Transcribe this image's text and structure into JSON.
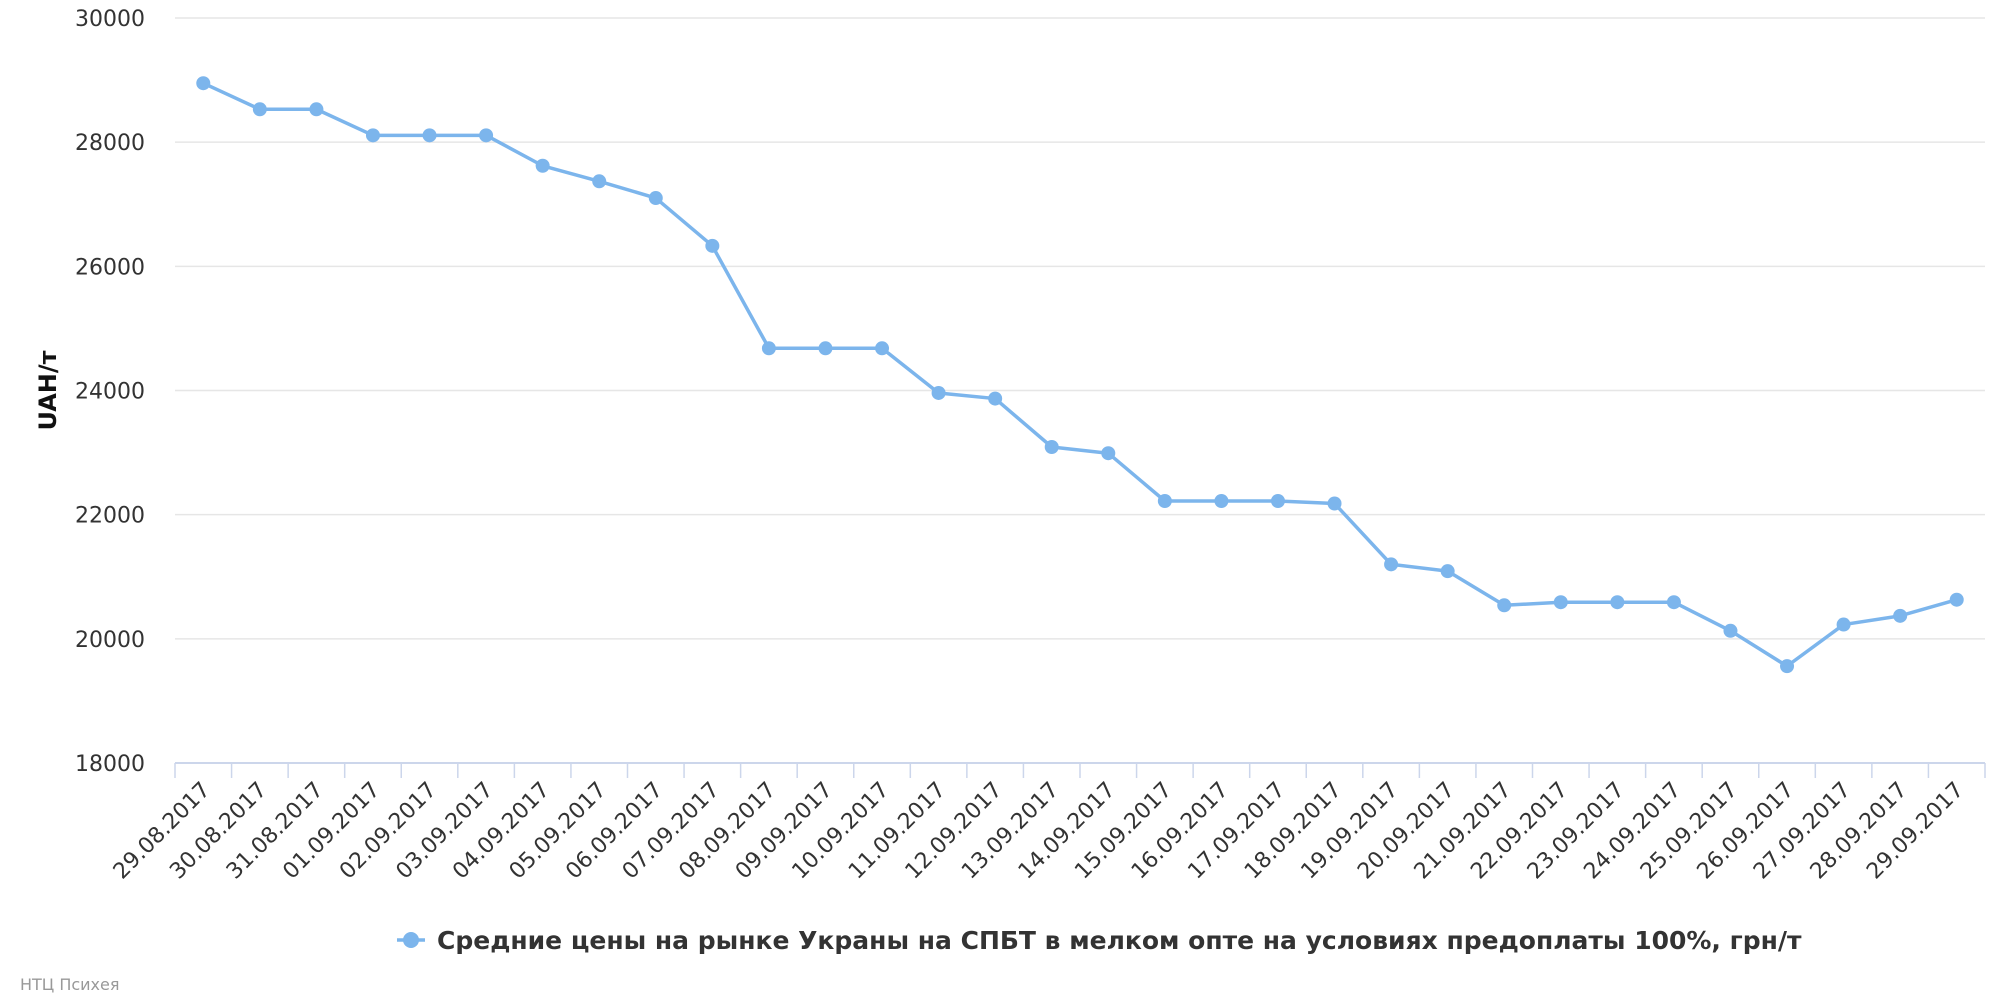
{
  "credit": "НТЦ Психея",
  "colors": {
    "series": "#7cb5ec",
    "grid": "#e6e6e6",
    "axis": "#ccd6eb"
  },
  "chart_data": {
    "type": "line",
    "title": "",
    "xlabel": "",
    "ylabel": "UAH/т",
    "ylim": [
      18000,
      30000
    ],
    "yticks": [
      "18000",
      "20000",
      "22000",
      "24000",
      "26000",
      "28000",
      "30000"
    ],
    "grid": true,
    "legend": "bottom-center",
    "categories": [
      "29.08.2017",
      "30.08.2017",
      "31.08.2017",
      "01.09.2017",
      "02.09.2017",
      "03.09.2017",
      "04.09.2017",
      "05.09.2017",
      "06.09.2017",
      "07.09.2017",
      "08.09.2017",
      "09.09.2017",
      "10.09.2017",
      "11.09.2017",
      "12.09.2017",
      "13.09.2017",
      "14.09.2017",
      "15.09.2017",
      "16.09.2017",
      "17.09.2017",
      "18.09.2017",
      "19.09.2017",
      "20.09.2017",
      "21.09.2017",
      "22.09.2017",
      "23.09.2017",
      "24.09.2017",
      "25.09.2017",
      "26.09.2017",
      "27.09.2017",
      "28.09.2017",
      "29.09.2017"
    ],
    "series": [
      {
        "name": "Средние цены на рынке Украны на СПБТ в мелком опте на условиях предоплаты 100%, грн/т",
        "values": [
          28950,
          28530,
          28530,
          28110,
          28110,
          28110,
          27620,
          27370,
          27100,
          26330,
          24680,
          24680,
          24680,
          23960,
          23870,
          23090,
          22990,
          22220,
          22220,
          22220,
          22180,
          21200,
          21090,
          20540,
          20590,
          20590,
          20590,
          20130,
          19560,
          20230,
          20370,
          20630
        ]
      }
    ]
  }
}
